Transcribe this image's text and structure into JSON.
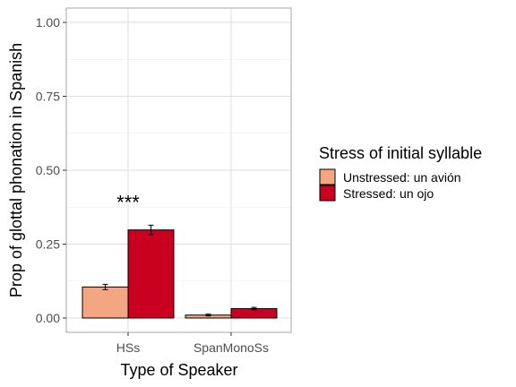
{
  "chart_data": {
    "type": "bar",
    "categories": [
      "HSs",
      "SpanMonoSs"
    ],
    "series": [
      {
        "name": "Unstressed: un avión",
        "values": [
          0.105,
          0.01
        ],
        "errors": [
          0.009,
          0.003
        ],
        "color": "#F4A582"
      },
      {
        "name": "Stressed: un ojo",
        "values": [
          0.298,
          0.032
        ],
        "errors": [
          0.016,
          0.004
        ],
        "color": "#CA0020"
      }
    ],
    "xlabel": "Type of Speaker",
    "ylabel": "Prop of glottal phonation in Spanish",
    "ylim": [
      0,
      1
    ],
    "yticks": [
      "0.00",
      "0.25",
      "0.50",
      "0.75",
      "1.00"
    ],
    "ytick_values": [
      0,
      0.25,
      0.5,
      0.75,
      1
    ],
    "legend_title": "Stress of initial syllable",
    "legend_position": "right",
    "grid": true,
    "annotations": [
      {
        "text": "***",
        "category": "HSs",
        "y": 0.41
      }
    ]
  }
}
